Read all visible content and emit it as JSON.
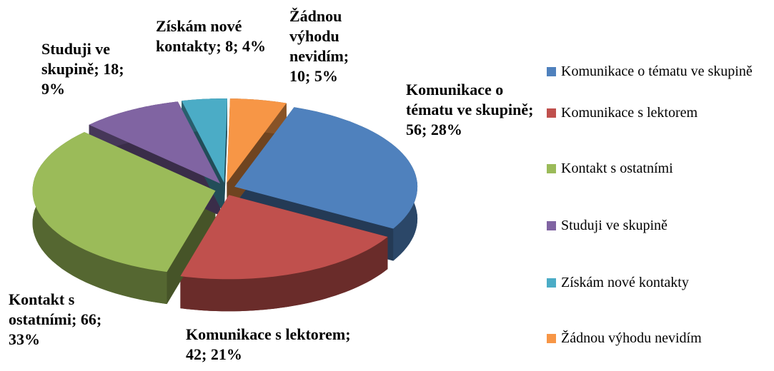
{
  "chart_data": {
    "type": "pie",
    "categories": [
      "Komunikace o tématu ve skupině",
      "Komunikace s lektorem",
      "Kontakt s ostatními",
      "Studuji ve skupině",
      "Získám nové kontakty",
      "Žádnou výhodu nevidím"
    ],
    "values": [
      56,
      42,
      66,
      18,
      8,
      10
    ],
    "value_labels": [
      "Komunikace o tématu ve skupině; 56; 28%",
      "Komunikace s lektorem; 42; 21%",
      "Kontakt s ostatními; 66; 33%",
      "Studuji ve skupině; 18; 9%",
      "Získám nové kontakty; 8; 4%",
      "Žádnou výhodu nevidím; 10; 5%"
    ],
    "colors": [
      "#4f81bd",
      "#c0504d",
      "#9bbb59",
      "#8064a2",
      "#4bacc6",
      "#f79646"
    ],
    "legend": "right"
  }
}
